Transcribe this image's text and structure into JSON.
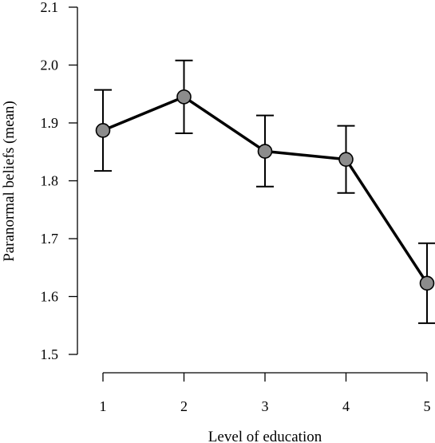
{
  "chart_data": {
    "type": "line",
    "xlabel": "Level of education",
    "ylabel": "Paranormal beliefs (mean)",
    "x": [
      1,
      2,
      3,
      4,
      5
    ],
    "xticks": [
      "1",
      "2",
      "3",
      "4",
      "5"
    ],
    "ylim": [
      1.5,
      2.1
    ],
    "yticks": [
      "1.5",
      "1.6",
      "1.7",
      "1.8",
      "1.9",
      "2.0",
      "2.1"
    ],
    "grid": false,
    "series": [
      {
        "values": [
          1.887,
          1.945,
          1.851,
          1.837,
          1.623
        ],
        "error_upper": [
          1.957,
          2.008,
          1.913,
          1.895,
          1.692
        ],
        "error_lower": [
          1.817,
          1.882,
          1.79,
          1.779,
          1.554
        ]
      }
    ],
    "colors": {
      "line": "#000000",
      "marker_fill": "#8c8c8c",
      "marker_stroke": "#000000"
    }
  }
}
